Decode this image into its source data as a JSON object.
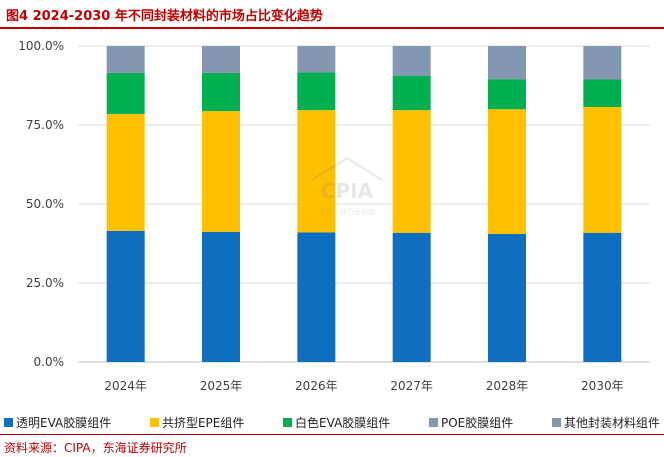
{
  "header": {
    "title": "图4  2024-2030 年不同封装材料的市场占比变化趋势"
  },
  "footer": {
    "source": "资料来源：CIPA，东海证券研究所"
  },
  "watermark": {
    "text": "CPIA",
    "subtext": "中国光伏行业协会"
  },
  "chart_data": {
    "type": "bar",
    "stacked": true,
    "categories": [
      "2024年",
      "2025年",
      "2026年",
      "2027年",
      "2028年",
      "2030年"
    ],
    "ylim": [
      0,
      100
    ],
    "yticks": [
      "0.0%",
      "25.0%",
      "50.0%",
      "75.0%",
      "100.0%"
    ],
    "ytick_values": [
      0,
      25,
      50,
      75,
      100
    ],
    "grid": true,
    "legend_position": "bottom",
    "series": [
      {
        "name": "透明EVA胶膜组件",
        "color": "#0e6fc1",
        "values": [
          41.5,
          41.2,
          41.0,
          40.9,
          40.5,
          40.9
        ]
      },
      {
        "name": "共挤型EPE组件",
        "color": "#ffc000",
        "values": [
          37.0,
          38.2,
          38.7,
          38.8,
          39.5,
          39.8
        ]
      },
      {
        "name": "白色EVA胶膜组件",
        "color": "#00b050",
        "values": [
          13.0,
          12.1,
          11.9,
          10.8,
          9.5,
          8.7
        ]
      },
      {
        "name": "POE胶膜组件",
        "color": "#8497b0",
        "values": [
          0,
          0,
          0,
          0,
          0,
          0
        ]
      },
      {
        "name": "其他封装材料组件",
        "color": "#8497b0",
        "values": [
          8.5,
          8.5,
          8.4,
          9.5,
          10.5,
          10.6
        ]
      }
    ]
  }
}
